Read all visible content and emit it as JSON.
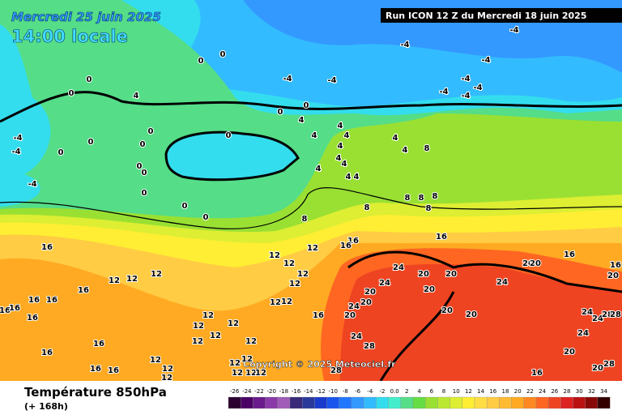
{
  "header": {
    "date": "Mercredi 25 juin 2025",
    "time": "14:00 locale",
    "run": "Run ICON 12 Z du Mercredi 18 juin 2025",
    "copyright": "Copyright © 2025 Meteociel.fr"
  },
  "footer": {
    "title": "Température 850hPa",
    "lead": "(+ 168h)"
  },
  "contour_labels": [
    0,
    0,
    4,
    0,
    0,
    -4,
    -4,
    0,
    0,
    4,
    0,
    0,
    0,
    0,
    0,
    0,
    0,
    0,
    0,
    0,
    -4,
    -4,
    -4,
    4,
    4,
    4,
    4,
    4,
    4,
    4,
    4,
    4,
    4,
    4,
    8,
    8,
    8,
    8,
    8,
    8,
    8,
    -4,
    -4,
    -4,
    -4,
    -4,
    -4,
    -4,
    16,
    16,
    16,
    16,
    16,
    16,
    16,
    16,
    16,
    16,
    16,
    12,
    12,
    12,
    12,
    12,
    12,
    12,
    12,
    12,
    12,
    12,
    12,
    12,
    12,
    12,
    12,
    12,
    12,
    12,
    12,
    12,
    12,
    12,
    12,
    16,
    16,
    16,
    16,
    16,
    16,
    16,
    24,
    24,
    24,
    24,
    24,
    24,
    24,
    24,
    20,
    20,
    20,
    20,
    20,
    20,
    20,
    20,
    20,
    20,
    20,
    20,
    20,
    28,
    28,
    28,
    28,
    28
  ],
  "colorbar": {
    "ticks": [
      -26,
      -24,
      -22,
      -20,
      -18,
      -16,
      -14,
      -12,
      -10,
      -8,
      -6,
      -4,
      -2,
      {
        "value": 0,
        "label": "0.0"
      },
      2,
      4,
      6,
      8,
      10,
      12,
      14,
      16,
      18,
      20,
      22,
      24,
      26,
      28,
      30,
      32,
      34
    ],
    "colors": [
      "#2b0030",
      "#4b0066",
      "#6a1a8c",
      "#8a3aa8",
      "#a05cb8",
      "#3a2a7a",
      "#2a3a9a",
      "#1a3ccc",
      "#1a55ee",
      "#2277ff",
      "#3399ff",
      "#33bbff",
      "#33ddee",
      "#44eecc",
      "#55dd88",
      "#66dd44",
      "#99e033",
      "#bbe833",
      "#ddee33",
      "#ffee33",
      "#ffdd44",
      "#ffcc44",
      "#ffbb33",
      "#ffaa22",
      "#ff8822",
      "#ff6622",
      "#ee4422",
      "#dd2222",
      "#bb1111",
      "#880808",
      "#330000"
    ]
  }
}
